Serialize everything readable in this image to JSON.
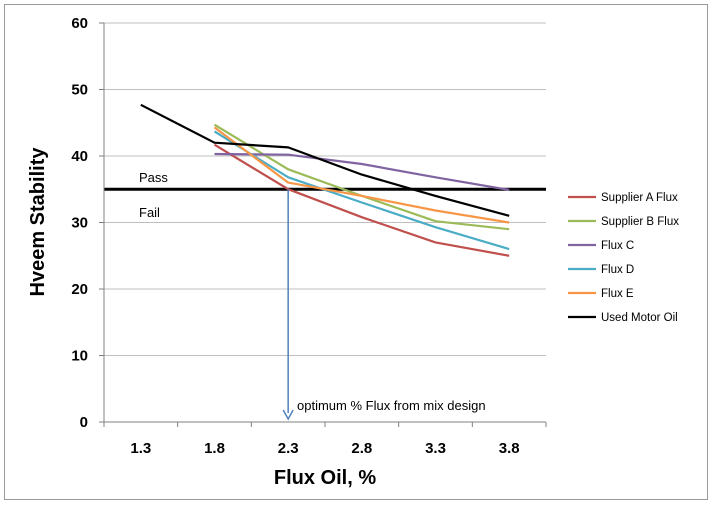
{
  "chart_data": {
    "type": "line",
    "title": "",
    "xlabel": "Flux Oil, %",
    "ylabel": "Hveem Stability",
    "x": [
      1.3,
      1.8,
      2.3,
      2.8,
      3.3,
      3.8
    ],
    "x_tick_labels": [
      "1.3",
      "1.8",
      "2.3",
      "2.8",
      "3.3",
      "3.8"
    ],
    "ylim": [
      0,
      60
    ],
    "y_ticks": [
      0,
      10,
      20,
      30,
      40,
      50,
      60
    ],
    "grid": "horizontal",
    "legend_position": "right",
    "series": [
      {
        "name": "Supplier A Flux",
        "color": "#c0504d",
        "points": [
          [
            1.8,
            41.7
          ],
          [
            2.3,
            35.0
          ],
          [
            2.8,
            30.8
          ],
          [
            3.3,
            27.0
          ],
          [
            3.8,
            25.0
          ]
        ]
      },
      {
        "name": "Supplier B Flux",
        "color": "#9bbb59",
        "points": [
          [
            1.8,
            44.7
          ],
          [
            2.3,
            38.0
          ],
          [
            2.8,
            34.0
          ],
          [
            3.3,
            30.2
          ],
          [
            3.8,
            29.0
          ]
        ]
      },
      {
        "name": "Flux C",
        "color": "#8064a2",
        "points": [
          [
            1.8,
            40.3
          ],
          [
            2.3,
            40.2
          ],
          [
            2.8,
            38.8
          ],
          [
            3.3,
            36.8
          ],
          [
            3.8,
            34.9
          ]
        ]
      },
      {
        "name": "Flux D",
        "color": "#4bacc6",
        "points": [
          [
            1.8,
            43.7
          ],
          [
            2.3,
            36.8
          ],
          [
            2.8,
            33.0
          ],
          [
            3.3,
            29.3
          ],
          [
            3.8,
            26.0
          ]
        ]
      },
      {
        "name": "Flux E",
        "color": "#f79646",
        "points": [
          [
            1.8,
            44.3
          ],
          [
            2.3,
            36.0
          ],
          [
            2.8,
            34.0
          ],
          [
            3.3,
            31.8
          ],
          [
            3.8,
            30.0
          ]
        ]
      },
      {
        "name": "Used Motor Oil",
        "color": "#000000",
        "points": [
          [
            1.3,
            47.7
          ],
          [
            1.8,
            42.0
          ],
          [
            2.3,
            41.3
          ],
          [
            2.8,
            37.2
          ],
          [
            3.3,
            34.0
          ],
          [
            3.8,
            31.0
          ]
        ]
      }
    ],
    "threshold": {
      "value": 35,
      "label_above": "Pass",
      "label_below": "Fail",
      "color": "#000000"
    },
    "annotation": {
      "text": "optimum % Flux from  mix design",
      "x": 2.3,
      "from_y": 35,
      "to_y": 0,
      "color": "#4f81bd"
    }
  }
}
